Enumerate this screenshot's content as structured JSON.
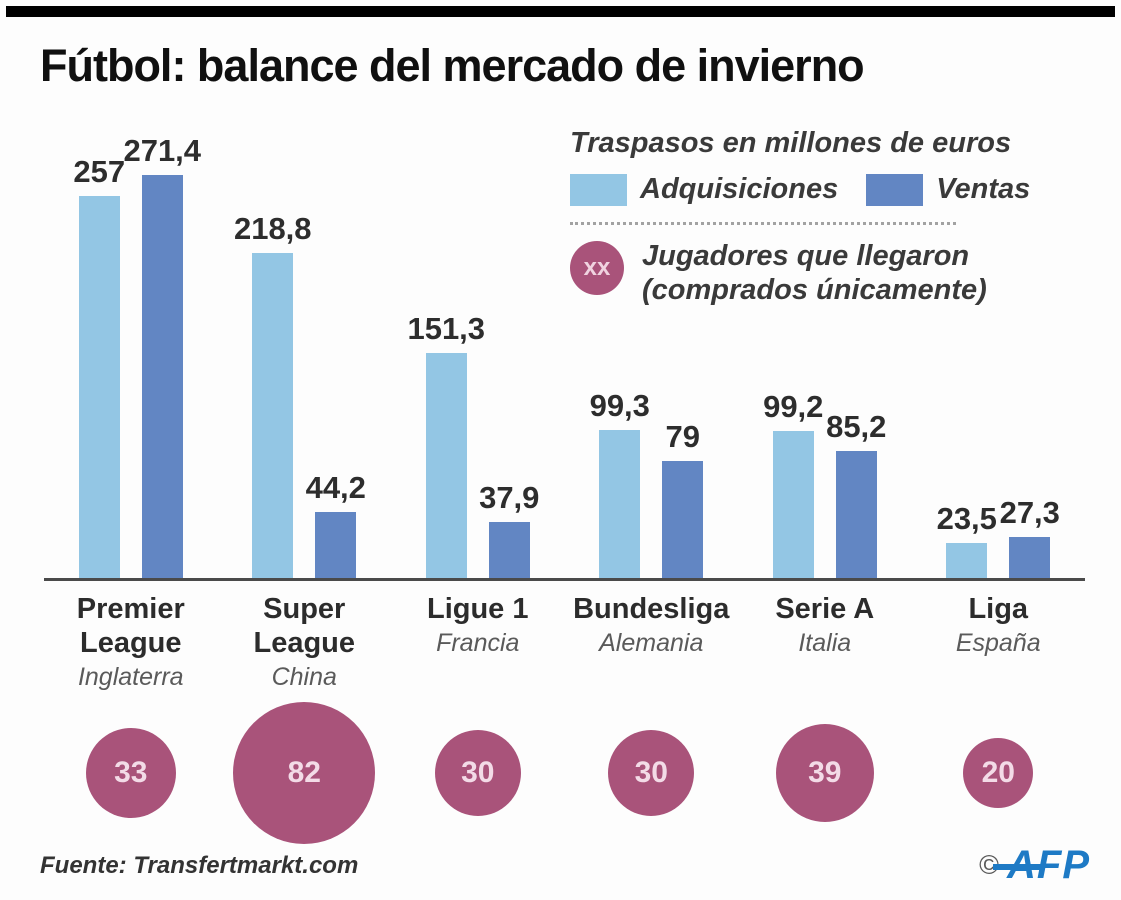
{
  "title": "Fútbol: balance del mercado de invierno",
  "legend": {
    "units_label": "Traspasos en millones de euros",
    "circle_symbol": "xx",
    "circle_label_line1": "Jugadores que llegaron",
    "circle_label_line2": "(comprados únicamente)"
  },
  "chart_data": {
    "type": "bar",
    "title": "Fútbol: balance del mercado de invierno",
    "units": "millones de euros",
    "categories": [
      "Premier League",
      "Super League",
      "Ligue 1",
      "Bundesliga",
      "Serie A",
      "Liga"
    ],
    "series": [
      {
        "name": "Adquisiciones",
        "color": "#93c6e4",
        "values": [
          257,
          218.8,
          151.3,
          99.3,
          99.2,
          23.5
        ]
      },
      {
        "name": "Ventas",
        "color": "#6286c3",
        "values": [
          271.4,
          44.2,
          37.9,
          79,
          85.2,
          27.3
        ]
      }
    ],
    "players_series": {
      "name": "Jugadores que llegaron (comprados únicamente)",
      "color": "#a9537a",
      "values": [
        33,
        82,
        30,
        30,
        39,
        20
      ]
    },
    "leagues": [
      {
        "name_lines": [
          "Premier",
          "League"
        ],
        "country": "Inglaterra",
        "adquisiciones_label": "257",
        "ventas_label": "271,4",
        "players": 33
      },
      {
        "name_lines": [
          "Super",
          "League"
        ],
        "country": "China",
        "adquisiciones_label": "218,8",
        "ventas_label": "44,2",
        "players": 82
      },
      {
        "name_lines": [
          "Ligue 1"
        ],
        "country": "Francia",
        "adquisiciones_label": "151,3",
        "ventas_label": "37,9",
        "players": 30
      },
      {
        "name_lines": [
          "Bundesliga"
        ],
        "country": "Alemania",
        "adquisiciones_label": "99,3",
        "ventas_label": "79",
        "players": 30
      },
      {
        "name_lines": [
          "Serie A"
        ],
        "country": "Italia",
        "adquisiciones_label": "99,2",
        "ventas_label": "85,2",
        "players": 39
      },
      {
        "name_lines": [
          "Liga"
        ],
        "country": "España",
        "adquisiciones_label": "23,5",
        "ventas_label": "27,3",
        "players": 20
      }
    ],
    "ylim": [
      0,
      280
    ],
    "grid": false,
    "legend_position": "top-right"
  },
  "footer": {
    "source": "Fuente: Transfertmarkt.com",
    "copyright_symbol": "©",
    "agency": "AFP"
  }
}
